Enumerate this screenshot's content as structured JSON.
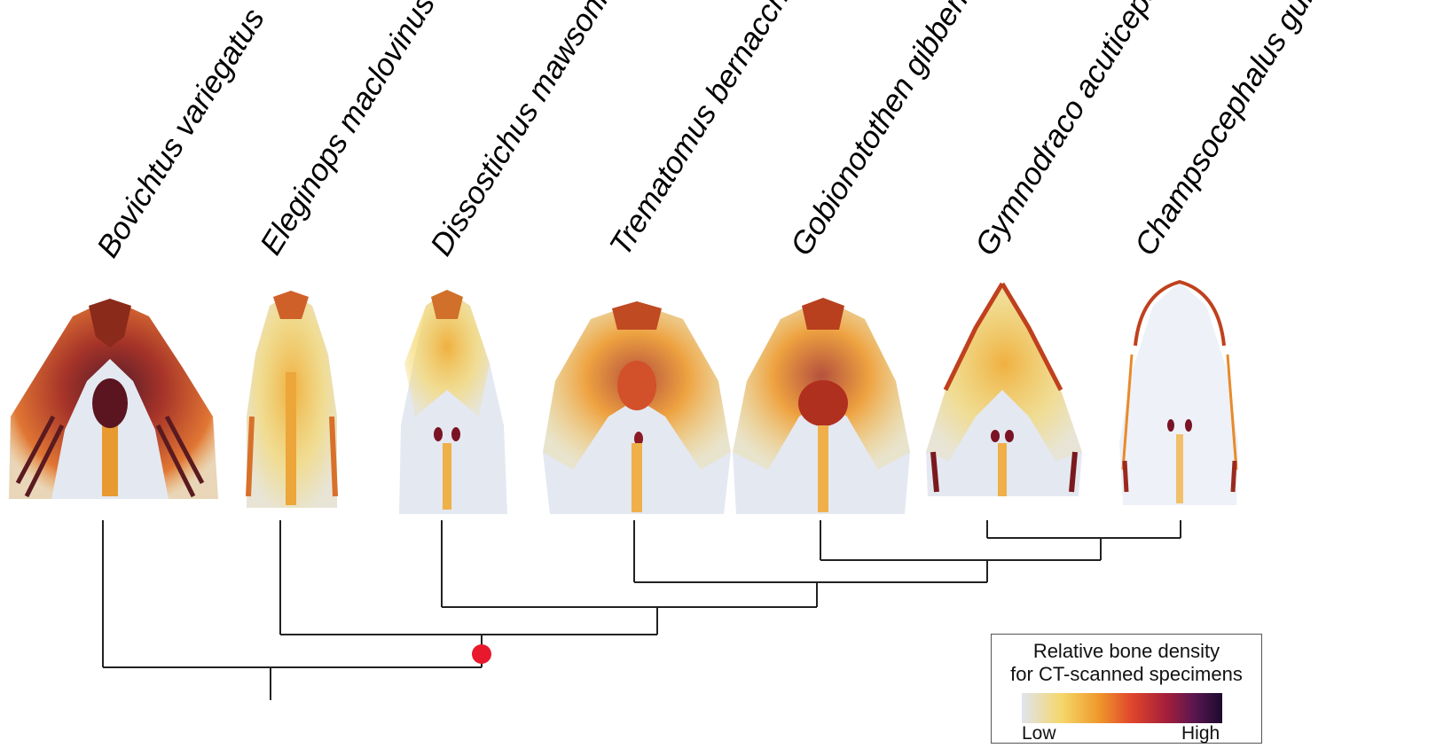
{
  "species": [
    "Bovichtus variegatus",
    "Eleginops maclovinus",
    "Dissostichus mawsoni",
    "Trematomus bernacchii",
    "Gobionotothen gibberifrons",
    "Gymnodraco acuticeps",
    "Champsocephalus gunnari"
  ],
  "legend": {
    "title_line1": "Relative bone density",
    "title_line2": "for CT-scanned specimens",
    "low": "Low",
    "high": "High"
  },
  "colors": {
    "scale": [
      "#dfe4ef",
      "#f5d76a",
      "#ef9a2c",
      "#e0452c",
      "#a51f3a",
      "#5a1650",
      "#1c0a2e"
    ],
    "node_marker": "#e8192c",
    "tree_line": "#222222"
  }
}
